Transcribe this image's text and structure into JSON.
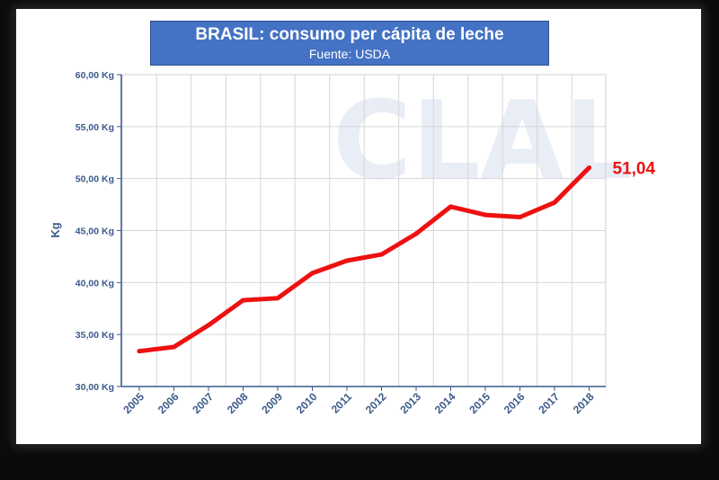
{
  "chart_data": {
    "type": "line",
    "title": "BRASIL: consumo per cápita de leche",
    "subtitle": "Fuente: USDA",
    "xlabel": "",
    "ylabel": "Kg",
    "categories": [
      "2005",
      "2006",
      "2007",
      "2008",
      "2009",
      "2010",
      "2011",
      "2012",
      "2013",
      "2014",
      "2015",
      "2016",
      "2017",
      "2018"
    ],
    "series": [
      {
        "values": [
          33.4,
          33.8,
          35.9,
          38.3,
          38.5,
          40.9,
          42.1,
          42.7,
          44.7,
          47.3,
          46.5,
          46.3,
          47.7,
          51.04
        ]
      }
    ],
    "yticks": [
      "30,00 Kg",
      "35,00 Kg",
      "40,00 Kg",
      "45,00 Kg",
      "50,00 Kg",
      "55,00 Kg",
      "60,00 Kg"
    ],
    "ylim": [
      30,
      60
    ],
    "grid": true,
    "line_color": "#ee1111",
    "end_label": "51,04",
    "watermark": "CLAL"
  }
}
